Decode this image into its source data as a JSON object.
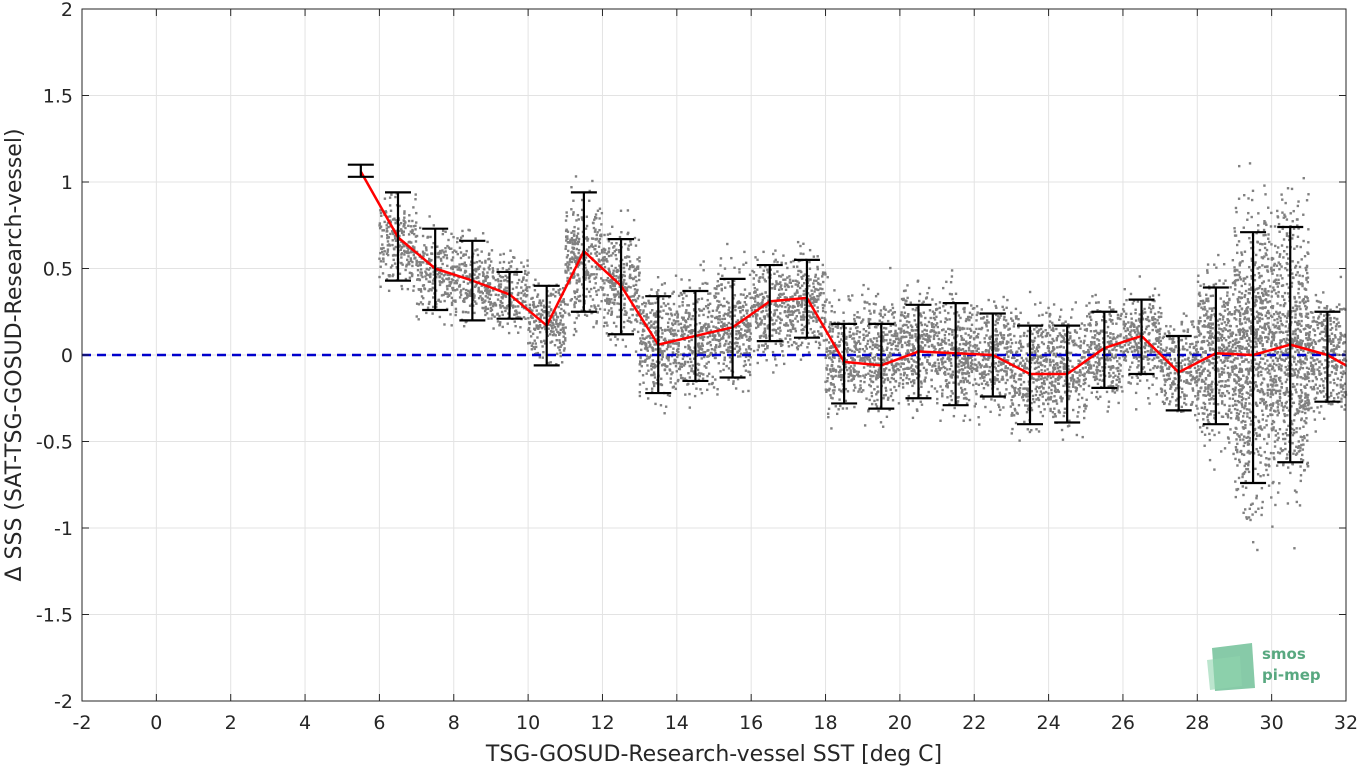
{
  "chart_data": {
    "type": "scatter",
    "xlabel": "TSG-GOSUD-Research-vessel SST [deg C]",
    "ylabel": "Δ SSS (SAT-TSG-GOSUD-Research-vessel)",
    "xlim": [
      -2,
      32
    ],
    "ylim": [
      -2,
      2
    ],
    "xticks": [
      -2,
      0,
      2,
      4,
      6,
      8,
      10,
      12,
      14,
      16,
      18,
      20,
      22,
      24,
      26,
      28,
      30,
      32
    ],
    "yticks": [
      -2,
      -1.5,
      -1,
      -0.5,
      0,
      0.5,
      1,
      1.5,
      2
    ],
    "grid": true,
    "zero_line": {
      "y": 0,
      "style": "dashed",
      "color": "#0000cc"
    },
    "scatter_color": "#808080",
    "scatter_clusters": [
      {
        "xmin": 6.0,
        "xmax": 7.0,
        "mean": 0.65,
        "spread": 0.22
      },
      {
        "xmin": 7.0,
        "xmax": 8.0,
        "mean": 0.48,
        "spread": 0.22
      },
      {
        "xmin": 8.0,
        "xmax": 9.0,
        "mean": 0.42,
        "spread": 0.22
      },
      {
        "xmin": 9.0,
        "xmax": 10.0,
        "mean": 0.36,
        "spread": 0.18
      },
      {
        "xmin": 10.0,
        "xmax": 11.0,
        "mean": 0.2,
        "spread": 0.22
      },
      {
        "xmin": 11.0,
        "xmax": 12.0,
        "mean": 0.55,
        "spread": 0.3
      },
      {
        "xmin": 12.0,
        "xmax": 13.0,
        "mean": 0.4,
        "spread": 0.28
      },
      {
        "xmin": 13.0,
        "xmax": 14.0,
        "mean": 0.08,
        "spread": 0.3
      },
      {
        "xmin": 14.0,
        "xmax": 15.0,
        "mean": 0.1,
        "spread": 0.28
      },
      {
        "xmin": 15.0,
        "xmax": 16.0,
        "mean": 0.15,
        "spread": 0.3
      },
      {
        "xmin": 16.0,
        "xmax": 17.0,
        "mean": 0.28,
        "spread": 0.26
      },
      {
        "xmin": 17.0,
        "xmax": 18.0,
        "mean": 0.3,
        "spread": 0.26
      },
      {
        "xmin": 18.0,
        "xmax": 19.0,
        "mean": 0.0,
        "spread": 0.28
      },
      {
        "xmin": 19.0,
        "xmax": 20.0,
        "mean": 0.0,
        "spread": 0.3
      },
      {
        "xmin": 20.0,
        "xmax": 21.0,
        "mean": 0.05,
        "spread": 0.3
      },
      {
        "xmin": 21.0,
        "xmax": 22.0,
        "mean": 0.02,
        "spread": 0.3
      },
      {
        "xmin": 22.0,
        "xmax": 23.0,
        "mean": 0.0,
        "spread": 0.28
      },
      {
        "xmin": 23.0,
        "xmax": 24.0,
        "mean": -0.08,
        "spread": 0.3
      },
      {
        "xmin": 24.0,
        "xmax": 25.0,
        "mean": -0.08,
        "spread": 0.3
      },
      {
        "xmin": 25.0,
        "xmax": 26.0,
        "mean": 0.03,
        "spread": 0.25
      },
      {
        "xmin": 26.0,
        "xmax": 27.0,
        "mean": 0.08,
        "spread": 0.25
      },
      {
        "xmin": 27.0,
        "xmax": 28.0,
        "mean": -0.05,
        "spread": 0.25
      },
      {
        "xmin": 28.0,
        "xmax": 29.0,
        "mean": 0.0,
        "spread": 0.45
      },
      {
        "xmin": 29.0,
        "xmax": 30.0,
        "mean": 0.0,
        "spread": 0.75
      },
      {
        "xmin": 30.0,
        "xmax": 31.0,
        "mean": 0.05,
        "spread": 0.7
      },
      {
        "xmin": 31.0,
        "xmax": 32.0,
        "mean": 0.0,
        "spread": 0.3
      }
    ],
    "series": [
      {
        "type": "line",
        "color": "#ff0000",
        "x": [
          5.5,
          6.5,
          7.5,
          8.5,
          9.5,
          10.5,
          11.5,
          12.5,
          13.5,
          14.5,
          15.5,
          16.5,
          17.5,
          18.5,
          19.5,
          20.5,
          21.5,
          22.5,
          23.5,
          24.5,
          25.5,
          26.5,
          27.5,
          28.5,
          29.5,
          30.5,
          31.5,
          32
        ],
        "y": [
          1.06,
          0.68,
          0.5,
          0.43,
          0.35,
          0.17,
          0.6,
          0.4,
          0.06,
          0.11,
          0.16,
          0.31,
          0.33,
          -0.04,
          -0.06,
          0.02,
          0.01,
          0.0,
          -0.11,
          -0.11,
          0.04,
          0.11,
          -0.1,
          0.01,
          0.0,
          0.06,
          0.0,
          -0.06
        ]
      },
      {
        "type": "errorbar",
        "color": "#000000",
        "x": [
          5.5,
          6.5,
          7.5,
          8.5,
          9.5,
          10.5,
          11.5,
          12.5,
          13.5,
          14.5,
          15.5,
          16.5,
          17.5,
          18.5,
          19.5,
          20.5,
          21.5,
          22.5,
          23.5,
          24.5,
          25.5,
          26.5,
          27.5,
          28.5,
          29.5,
          30.5,
          31.5
        ],
        "low": [
          1.03,
          0.43,
          0.26,
          0.2,
          0.21,
          -0.06,
          0.25,
          0.12,
          -0.22,
          -0.15,
          -0.13,
          0.08,
          0.1,
          -0.28,
          -0.31,
          -0.25,
          -0.29,
          -0.24,
          -0.4,
          -0.39,
          -0.19,
          -0.11,
          -0.32,
          -0.4,
          -0.74,
          -0.62,
          -0.27
        ],
        "high": [
          1.1,
          0.94,
          0.73,
          0.66,
          0.48,
          0.4,
          0.94,
          0.67,
          0.34,
          0.37,
          0.44,
          0.52,
          0.55,
          0.18,
          0.18,
          0.29,
          0.3,
          0.24,
          0.17,
          0.17,
          0.25,
          0.32,
          0.11,
          0.39,
          0.71,
          0.74,
          0.25
        ]
      }
    ]
  },
  "logo": {
    "line1": "smos",
    "line2": "pi-mep"
  }
}
